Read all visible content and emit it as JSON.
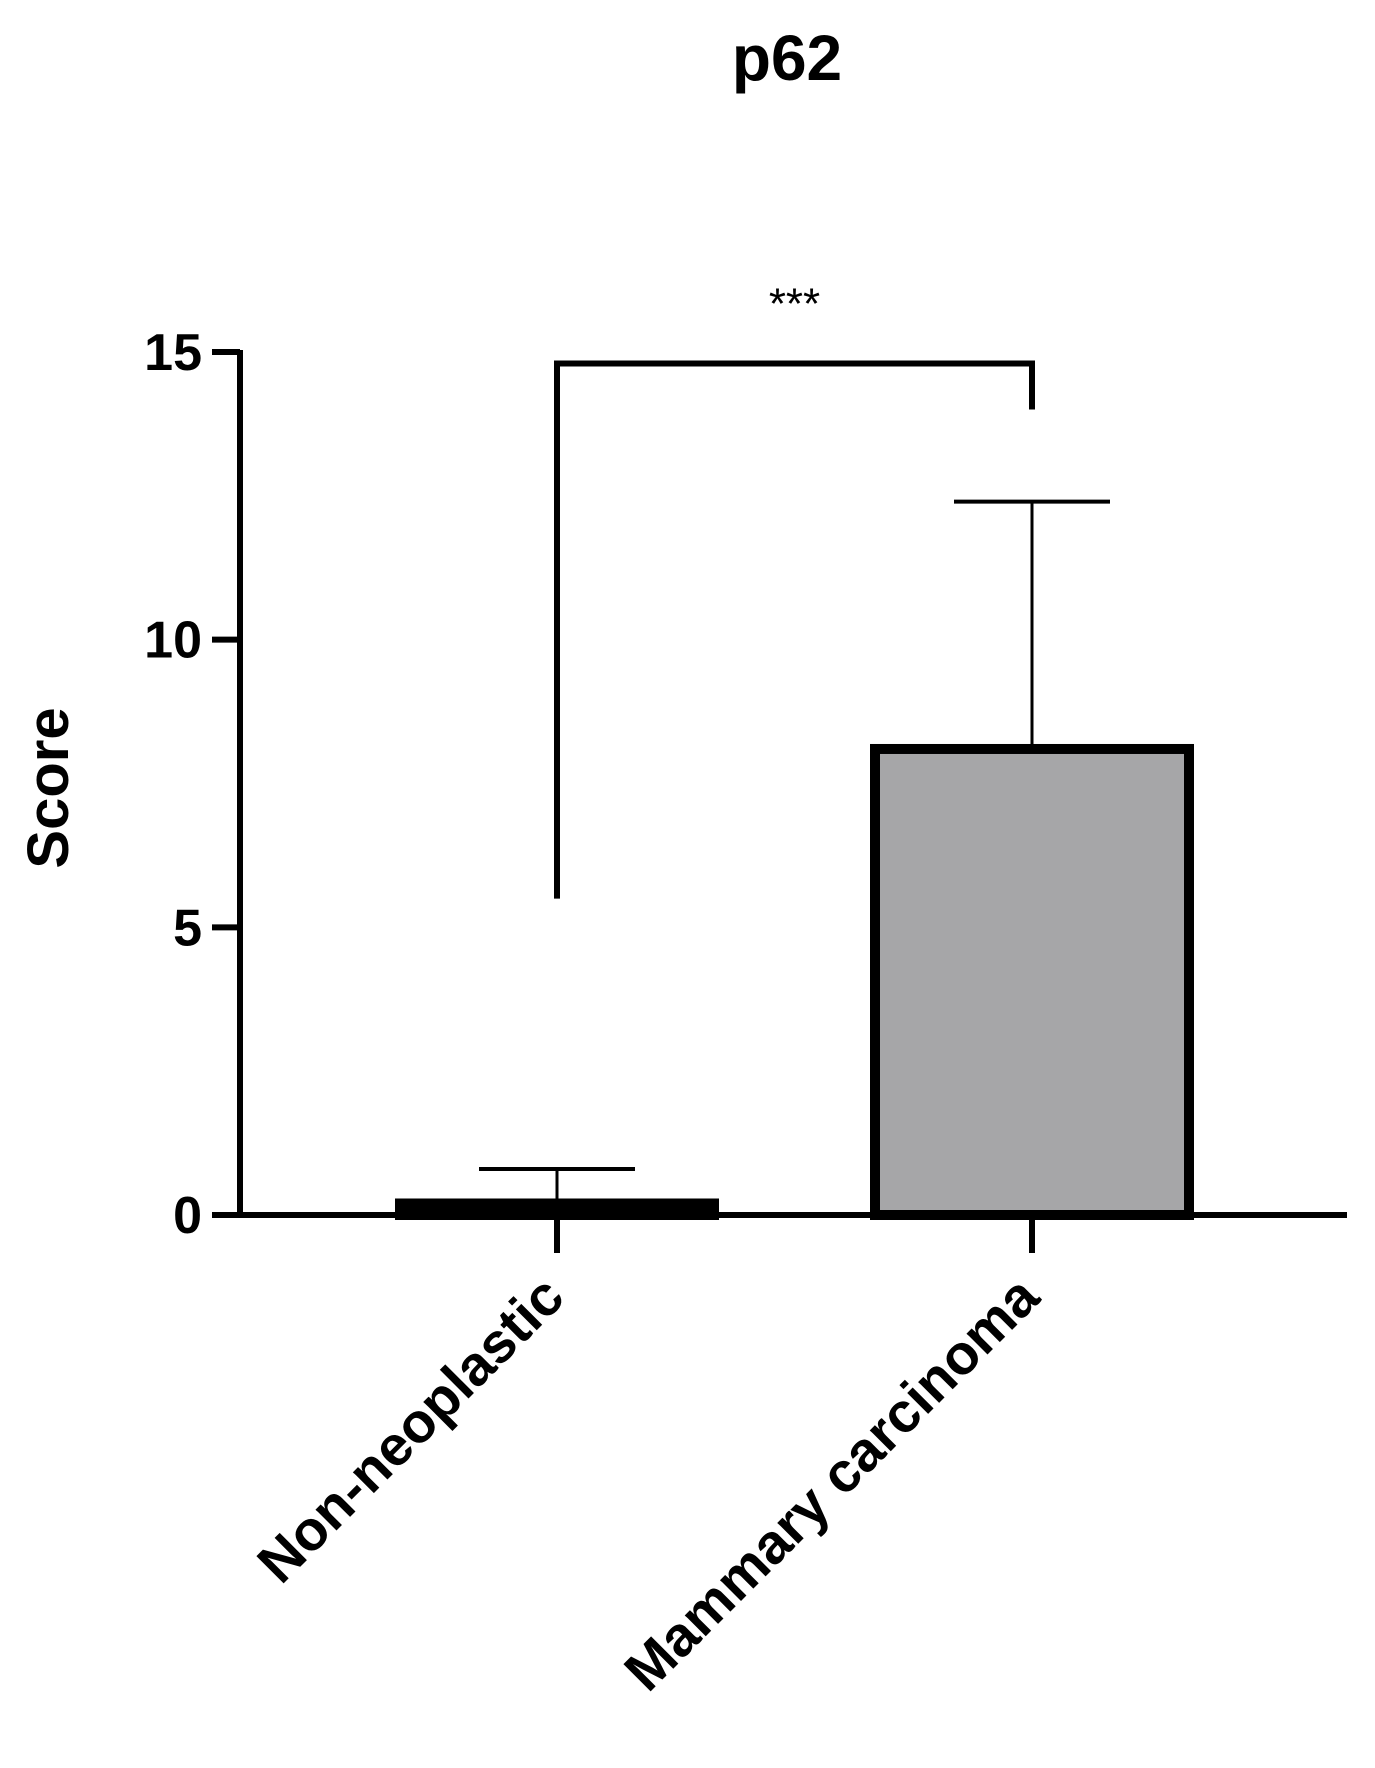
{
  "chart_data": {
    "type": "bar",
    "title": "p62",
    "xlabel": "",
    "ylabel": "Score",
    "ylim": [
      0,
      15
    ],
    "yticks": [
      0,
      5,
      10,
      15
    ],
    "categories": [
      "Non-neoplastic",
      "Mammary carcinoma"
    ],
    "values": [
      0.2,
      8.1
    ],
    "error_upper": [
      0.8,
      12.4
    ],
    "bar_colors": [
      "#000000",
      "#a6a6a8"
    ],
    "significance": {
      "label": "***",
      "from_category": 0,
      "to_category": 1,
      "y": 14.8,
      "left_end": 5.5,
      "right_end": 14.0
    },
    "grid": false,
    "legend": "none"
  }
}
